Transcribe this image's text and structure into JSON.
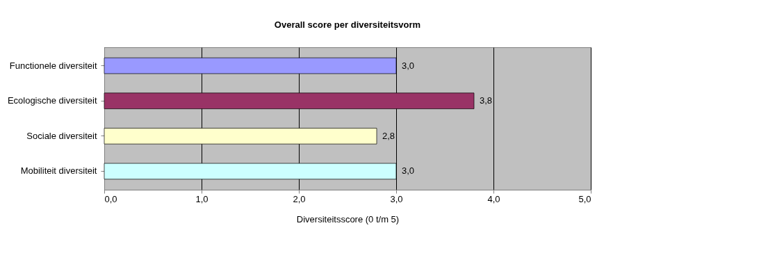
{
  "chart_data": {
    "type": "bar",
    "orientation": "horizontal",
    "title": "Overall score per diversiteitsvorm",
    "xlabel": "Diversiteitsscore (0 t/m 5)",
    "categories": [
      "Functionele diversiteit",
      "Ecologische diversiteit",
      "Sociale diversiteit",
      "Mobiliteit diversiteit"
    ],
    "values": [
      3.0,
      3.8,
      2.8,
      3.0
    ],
    "colors": [
      "#9999ff",
      "#993366",
      "#ffffcc",
      "#ccffff"
    ],
    "value_labels": [
      "3,0",
      "3,8",
      "2,8",
      "3,0"
    ],
    "xlim": [
      0,
      5
    ],
    "xticks": [
      {
        "value": 0,
        "label": "0,0"
      },
      {
        "value": 1,
        "label": "1,0"
      },
      {
        "value": 2,
        "label": "2,0"
      },
      {
        "value": 3,
        "label": "3,0"
      },
      {
        "value": 4,
        "label": "4,0"
      },
      {
        "value": 5,
        "label": "5,0"
      }
    ],
    "grid": "x"
  }
}
